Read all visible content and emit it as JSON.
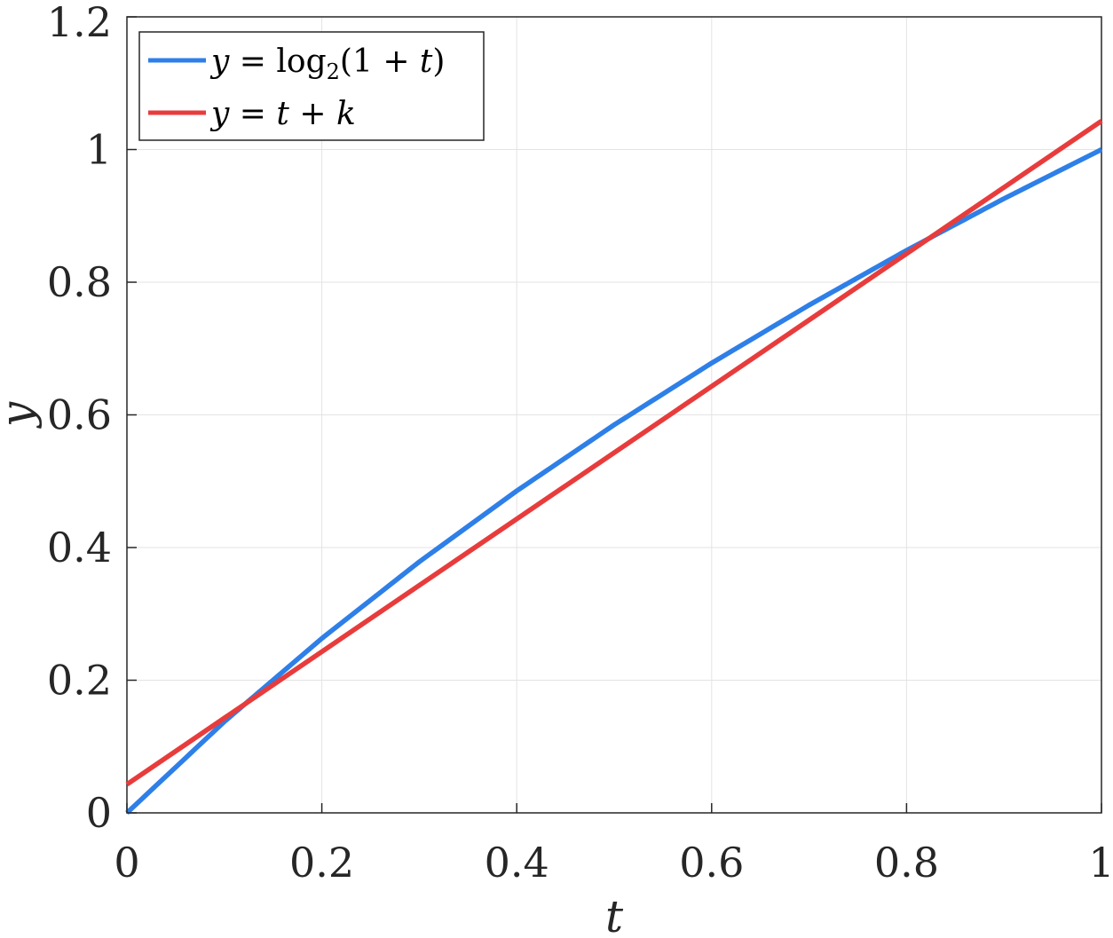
{
  "chart_data": {
    "type": "line",
    "xlabel": "t",
    "ylabel": "y",
    "xlim": [
      0,
      1
    ],
    "ylim": [
      0,
      1.2
    ],
    "grid": true,
    "legend_position": "top-left",
    "xticks": [
      0,
      0.2,
      0.4,
      0.6,
      0.8,
      1
    ],
    "yticks": [
      0,
      0.2,
      0.4,
      0.6,
      0.8,
      1,
      1.2
    ],
    "xtick_labels": [
      "0",
      "0.2",
      "0.4",
      "0.6",
      "0.8",
      "1"
    ],
    "ytick_labels": [
      "0",
      "0.2",
      "0.4",
      "0.6",
      "0.8",
      "1",
      "1.2"
    ],
    "series": [
      {
        "name": "y = log2(1 + t)",
        "color": "#2e7fe8",
        "x": [
          0,
          0.1,
          0.2,
          0.3,
          0.4,
          0.5,
          0.6,
          0.7,
          0.8,
          0.9,
          1.0
        ],
        "y": [
          0,
          0.1375,
          0.263,
          0.3785,
          0.4854,
          0.585,
          0.6781,
          0.7655,
          0.848,
          0.926,
          1.0
        ]
      },
      {
        "name": "y = t + k",
        "color": "#e83c3c",
        "x": [
          0,
          1
        ],
        "y": [
          0.043,
          1.043
        ]
      }
    ]
  }
}
